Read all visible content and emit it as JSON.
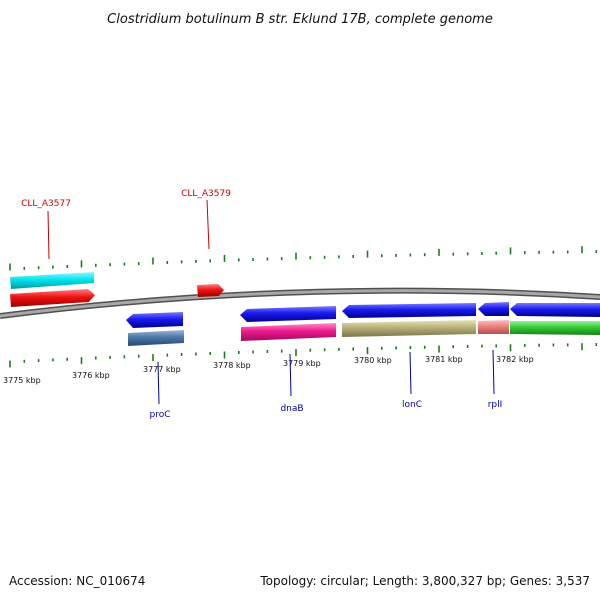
{
  "title": "Clostridium botulinum B str. Eklund 17B, complete genome",
  "scale": {
    "labels": [
      "3775 kbp",
      "3776 kbp",
      "3777 kbp",
      "3778 kbp",
      "3779 kbp",
      "3780 kbp",
      "3781 kbp",
      "3782 kbp"
    ]
  },
  "genes": {
    "CLL_A3577": "CLL_A3577",
    "CLL_A3579": "CLL_A3579",
    "proC": "proC",
    "dnaB": "dnaB",
    "lonC": "lonC",
    "rplI": "rplI"
  },
  "colors": {
    "backbone": "#808080",
    "tick": "#1f7a1f",
    "cyan": "#00e5ee",
    "red": "#ee1111",
    "blue": "#1a1aee",
    "steel": "#4a78a8",
    "magenta": "#ee1a90",
    "khaki": "#b8b07a",
    "salmon": "#ee8080",
    "green": "#33cc33",
    "label_red": "#cc0000",
    "label_blue": "#0000aa"
  },
  "footer": {
    "accession": "Accession: NC_010674",
    "topology": "Topology: circular; Length: 3,800,327 bp; Genes: 3,537"
  }
}
